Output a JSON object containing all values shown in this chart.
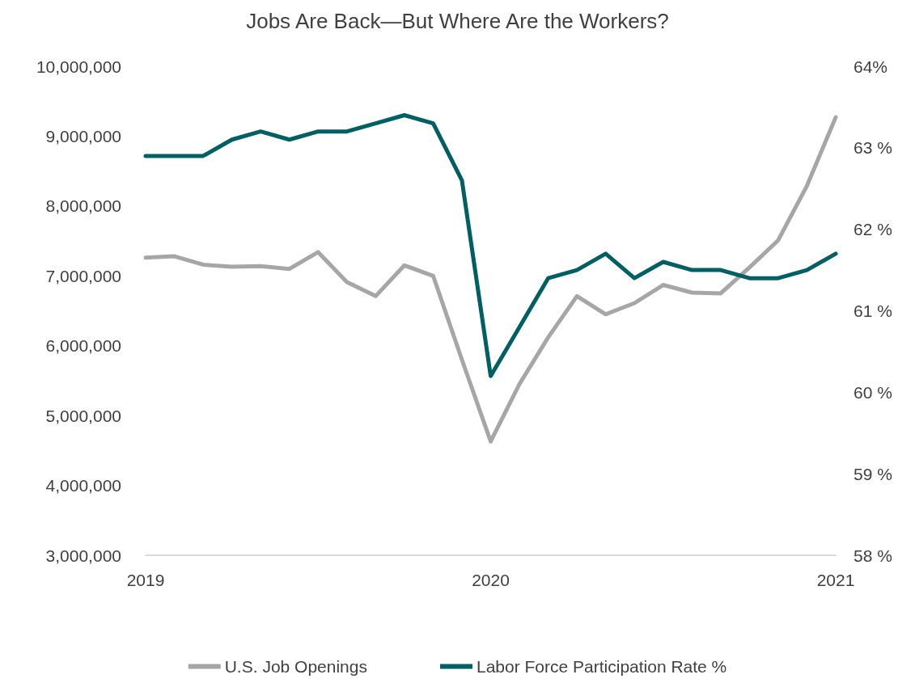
{
  "chart_data": {
    "type": "line",
    "title": "Jobs Are Back—But Where Are the Workers?",
    "categories": [
      "2019",
      null,
      null,
      null,
      null,
      null,
      null,
      null,
      null,
      null,
      null,
      null,
      "2020",
      null,
      null,
      null,
      null,
      null,
      null,
      null,
      null,
      null,
      null,
      null,
      "2021"
    ],
    "series": [
      {
        "name": "U.S. Job Openings",
        "color": "#a6a6a6",
        "values": [
          7260000,
          7280000,
          7160000,
          7130000,
          7140000,
          7100000,
          7340000,
          6910000,
          6710000,
          7150000,
          7000000,
          5800000,
          4630000,
          5450000,
          6120000,
          6710000,
          6450000,
          6610000,
          6870000,
          6760000,
          6750000,
          7120000,
          7510000,
          8290000,
          9270000
        ]
      },
      {
        "name": "Labor Force Participation Rate %",
        "color": "#005f63",
        "axis": "y2",
        "values": [
          62.9,
          62.9,
          62.9,
          63.1,
          63.2,
          63.1,
          63.2,
          63.2,
          63.3,
          63.4,
          63.3,
          62.6,
          60.2,
          60.8,
          61.4,
          61.5,
          61.7,
          61.4,
          61.6,
          61.5,
          61.5,
          61.4,
          61.4,
          61.5,
          61.7
        ]
      }
    ],
    "ylim": [
      3000000,
      10000000
    ],
    "yticks": [
      {
        "value": 3000000,
        "label": "3,000,000"
      },
      {
        "value": 4000000,
        "label": "4,000,000"
      },
      {
        "value": 5000000,
        "label": "5,000,000"
      },
      {
        "value": 6000000,
        "label": "6,000,000"
      },
      {
        "value": 7000000,
        "label": "7,000,000"
      },
      {
        "value": 8000000,
        "label": "8,000,000"
      },
      {
        "value": 9000000,
        "label": "9,000,000"
      },
      {
        "value": 10000000,
        "label": "10,000,000"
      }
    ],
    "y2lim": [
      58,
      64
    ],
    "y2ticks": [
      {
        "value": 58,
        "label": "58 %"
      },
      {
        "value": 59,
        "label": "59 %"
      },
      {
        "value": 60,
        "label": "60 %"
      },
      {
        "value": 61,
        "label": "61 %"
      },
      {
        "value": 62,
        "label": "62 %"
      },
      {
        "value": 63,
        "label": "63 %"
      },
      {
        "value": 64,
        "label": "64%"
      }
    ],
    "grid": false,
    "legend": "bottom",
    "marker": "none",
    "line_style": "solid"
  }
}
